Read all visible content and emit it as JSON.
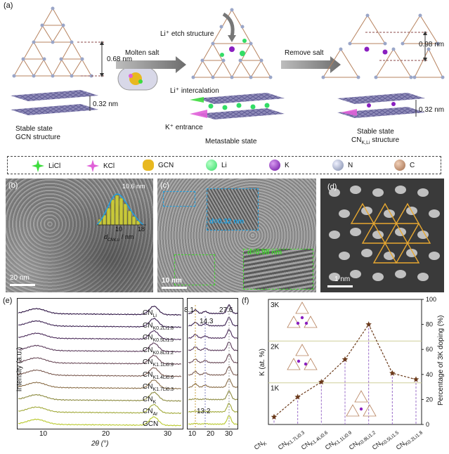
{
  "panel_a": {
    "letter": "(a)",
    "left_caption_1": "Stable state",
    "left_caption_2": "GCN structure",
    "spacing_top_left": "0.68 nm",
    "spacing_bottom_left": "0.32 nm",
    "arrow1_label": "Molten salt",
    "etch_label": "Li⁺ etch structure",
    "intercalation_label": "Li⁺ intercalation",
    "entrance_label": "K⁺ entrance",
    "mid_caption": "Metastable state",
    "arrow2_label": "Remove salt",
    "spacing_top_right": "0.98 nm",
    "spacing_bottom_right": "0.32 nm",
    "right_caption_1": "Stable state",
    "right_caption_2": "CN",
    "right_caption_2_sub": "K,Li",
    "right_caption_2_suffix": " structure"
  },
  "legend": {
    "items": [
      {
        "label": "LiCl",
        "icon": "licl-star-icon",
        "color": "#3ddc3d"
      },
      {
        "label": "KCl",
        "icon": "kcl-star-icon",
        "color": "#e060d8"
      },
      {
        "label": "GCN",
        "icon": "gcn-blob-icon",
        "color": "#e8b820"
      },
      {
        "label": "Li",
        "icon": "li-sphere-icon",
        "color": "#33dd66"
      },
      {
        "label": "K",
        "icon": "k-sphere-icon",
        "color": "#8a1fc0"
      },
      {
        "label": "N",
        "icon": "n-sphere-icon",
        "color": "#9aa6c8"
      },
      {
        "label": "C",
        "icon": "c-sphere-icon",
        "color": "#b07a5a"
      }
    ]
  },
  "panel_b": {
    "letter": "(b)",
    "hist_peak": "10.6 nm",
    "hist_tick_1": "10",
    "hist_tick_2": "18",
    "hist_xlabel": "d",
    "hist_xlabel_sub": "CN",
    "hist_xlabel_sub2": "K,Li",
    "hist_xlabel_suffix": " / nm",
    "scale_bar": "20 nm"
  },
  "panel_c": {
    "letter": "(c)",
    "d1": "d=0.32 nm",
    "d2": "d=0.98 nm",
    "scale_bar": "10 nm"
  },
  "panel_d": {
    "letter": "(d)",
    "scale_bar": "1 nm"
  },
  "panel_e": {
    "letter": "(e)",
    "ylabel": "Intensity (a.u.)",
    "xlabel": "2θ (°)",
    "peak_81": "8.1",
    "peak_143": "14.3",
    "peak_276": "27.6",
    "peak_132": "13.2",
    "series": [
      {
        "base": "CN",
        "sub": "Li",
        "color": "#2a1040"
      },
      {
        "base": "CN",
        "sub": "K0.2Li1.8",
        "color": "#3a2050"
      },
      {
        "base": "CN",
        "sub": "K0.5Li1.5",
        "color": "#4a2a58"
      },
      {
        "base": "CN",
        "sub": "K0.8Li1.2",
        "color": "#5a3a5a"
      },
      {
        "base": "CN",
        "sub": "K1.1Li0.9",
        "color": "#6a4a58"
      },
      {
        "base": "CN",
        "sub": "K1.4Li0.6",
        "color": "#7a5a50"
      },
      {
        "base": "CN",
        "sub": "K1.7Li0.3",
        "color": "#8a6e48"
      },
      {
        "base": "CN",
        "sub": "K",
        "color": "#8c8a40"
      },
      {
        "base": "CN",
        "sub": "Ar",
        "color": "#a0a838"
      },
      {
        "base": "GCN",
        "sub": "",
        "color": "#b8c82a"
      }
    ],
    "x_ticks_left": [
      "10",
      "20",
      "30"
    ],
    "x_ticks_right": [
      "10",
      "20",
      "30"
    ]
  },
  "chart_data": {
    "type": "line",
    "title": "",
    "xlabel": "",
    "ylabel": "K (at. %)",
    "ylabel_right": "Percentage of 3K doping (%)",
    "categories": [
      "CN_K",
      "CN_K1.7Li0.3",
      "CN_K1.4Li0.6",
      "CN_K1.1Li0.9",
      "CN_K0.8Li1.2",
      "CN_K0.5Li1.5",
      "CN_K0.2Li1.8"
    ],
    "category_labels": [
      {
        "base": "CN",
        "sub": "K"
      },
      {
        "base": "CN",
        "sub": "K1.7Li0.3"
      },
      {
        "base": "CN",
        "sub": "K1.4Li0.6"
      },
      {
        "base": "CN",
        "sub": "K1.1Li0.9"
      },
      {
        "base": "CN",
        "sub": "K0.8Li1.2"
      },
      {
        "base": "CN",
        "sub": "K0.5Li1.5"
      },
      {
        "base": "CN",
        "sub": "K0.2Li1.8"
      }
    ],
    "values_percent": [
      6,
      22,
      34,
      52,
      80,
      41,
      36
    ],
    "ylim_right": [
      0,
      100
    ],
    "y_ticks_right": [
      "0",
      "20",
      "40",
      "60",
      "80",
      "100"
    ],
    "level_labels": [
      "3K",
      "2K",
      "1K"
    ],
    "level_percent": [
      100,
      66.7,
      33.3
    ],
    "panel_letter": "(f)"
  }
}
